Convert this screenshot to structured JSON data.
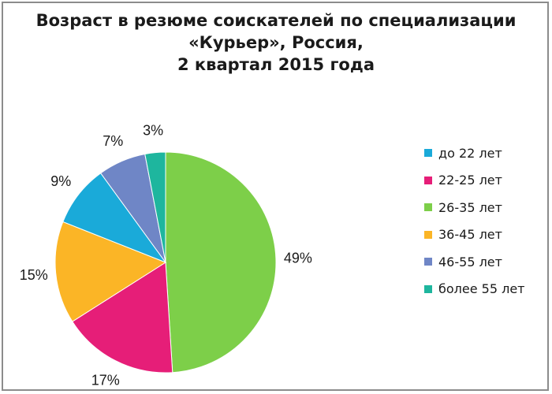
{
  "chart_data": {
    "type": "pie",
    "title_lines": [
      "Возраст в резюме соискателей по специализации",
      "«Курьер», Россия,",
      "2 квартал 2015 года"
    ],
    "categories": [
      "до 22 лет",
      "22-25 лет",
      "26-35 лет",
      "36-45 лет",
      "46-55 лет",
      "более 55 лет"
    ],
    "values": [
      9,
      17,
      49,
      15,
      7,
      3
    ],
    "value_labels": [
      "9%",
      "17%",
      "49%",
      "15%",
      "7%",
      "3%"
    ],
    "colors": [
      "#1aaad9",
      "#e61e78",
      "#7dcf49",
      "#fbb526",
      "#6f86c6",
      "#1eb69e"
    ],
    "slice_order": [
      2,
      1,
      3,
      0,
      4,
      5
    ],
    "legend_position": "right"
  }
}
